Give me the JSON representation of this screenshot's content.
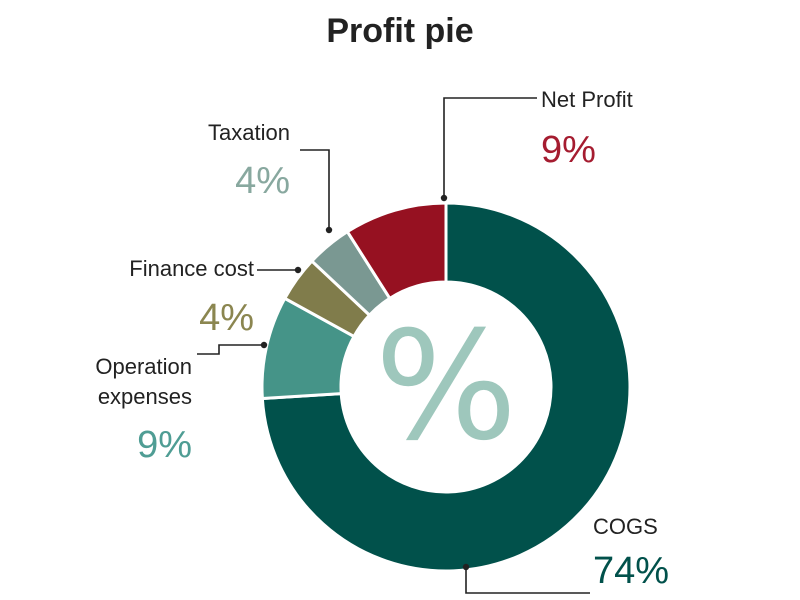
{
  "chart_data": {
    "type": "pie",
    "title": "Profit pie",
    "center_symbol": "%",
    "unit": "%",
    "slices": [
      {
        "label": "COGS",
        "value": 74,
        "display": "74%",
        "color": "#01514b"
      },
      {
        "label": "Operation expenses",
        "value": 9,
        "display": "9%",
        "color": "#459488"
      },
      {
        "label": "Finance cost",
        "value": 4,
        "display": "4%",
        "color": "#807c4b"
      },
      {
        "label": "Taxation",
        "value": 4,
        "display": "4%",
        "color": "#7a9892"
      },
      {
        "label": "Net Profit",
        "value": 9,
        "display": "9%",
        "color": "#961121"
      }
    ],
    "value_colors": {
      "COGS": "#01514b",
      "Operation expenses": "#4f9d94",
      "Finance cost": "#8b8650",
      "Taxation": "#88a89f",
      "Net Profit": "#a51c30"
    },
    "center_symbol_color": "#9ec7bc",
    "legend": "none",
    "grid": false
  }
}
